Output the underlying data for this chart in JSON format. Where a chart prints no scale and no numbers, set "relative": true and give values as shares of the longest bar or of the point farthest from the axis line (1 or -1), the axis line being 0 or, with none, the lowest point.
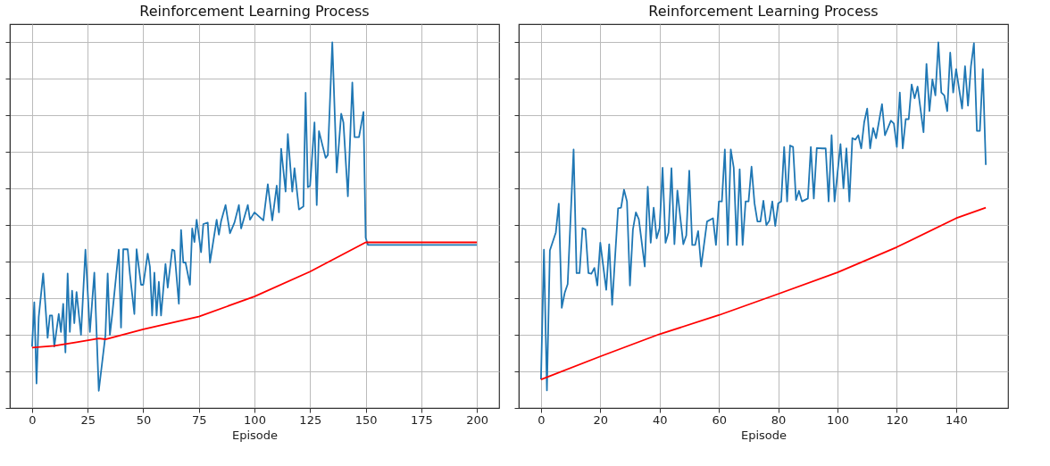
{
  "chart_data": [
    {
      "type": "line",
      "title": "Reinforcement Learning Process",
      "xlabel": "Episode",
      "relative": true,
      "xlim": [
        -10,
        210
      ],
      "xticks": [
        0,
        25,
        50,
        75,
        100,
        125,
        150,
        175,
        200
      ],
      "grid": true,
      "series": [
        {
          "color": "#1f77b4",
          "x": [
            0,
            1,
            2,
            3,
            5,
            7,
            8,
            9,
            10,
            12,
            13,
            14,
            15,
            16,
            17,
            18,
            19,
            20,
            22,
            24,
            26,
            28,
            30,
            33,
            34,
            35,
            36,
            39,
            40,
            41,
            43,
            44,
            46,
            47,
            49,
            50,
            52,
            53,
            54,
            55,
            56,
            57,
            58,
            60,
            61,
            63,
            64,
            66,
            67,
            68,
            69,
            71,
            72,
            73,
            74,
            76,
            77,
            79,
            80,
            83,
            84,
            85,
            87,
            89,
            91,
            93,
            94,
            97,
            98,
            100,
            104,
            106,
            108,
            110,
            111,
            112,
            114,
            115,
            117,
            118,
            120,
            122,
            123,
            124,
            125,
            127,
            128,
            129,
            132,
            133,
            135,
            137,
            139,
            140,
            142,
            144,
            145,
            147,
            149,
            150,
            151,
            200
          ],
          "values": [
            0.168,
            0.289,
            0.067,
            0.249,
            0.368,
            0.192,
            0.253,
            0.253,
            0.168,
            0.257,
            0.208,
            0.285,
            0.152,
            0.368,
            0.208,
            0.321,
            0.232,
            0.317,
            0.2,
            0.433,
            0.208,
            0.37,
            0.047,
            0.2,
            0.368,
            0.2,
            0.253,
            0.433,
            0.22,
            0.434,
            0.434,
            0.366,
            0.257,
            0.434,
            0.337,
            0.337,
            0.422,
            0.386,
            0.253,
            0.37,
            0.253,
            0.345,
            0.253,
            0.394,
            0.329,
            0.433,
            0.43,
            0.285,
            0.487,
            0.398,
            0.398,
            0.337,
            0.491,
            0.454,
            0.515,
            0.426,
            0.503,
            0.507,
            0.398,
            0.515,
            0.474,
            0.511,
            0.555,
            0.478,
            0.507,
            0.555,
            0.491,
            0.555,
            0.515,
            0.535,
            0.513,
            0.612,
            0.513,
            0.608,
            0.535,
            0.709,
            0.592,
            0.749,
            0.592,
            0.656,
            0.543,
            0.551,
            0.862,
            0.604,
            0.608,
            0.781,
            0.555,
            0.757,
            0.684,
            0.692,
            1.0,
            0.644,
            0.805,
            0.781,
            0.579,
            0.89,
            0.741,
            0.741,
            0.81,
            0.466,
            0.446,
            0.446
          ]
        },
        {
          "color": "#ff0000",
          "x": [
            0,
            10,
            20,
            30,
            33,
            50,
            75,
            100,
            125,
            150,
            200
          ],
          "values": [
            0.165,
            0.17,
            0.18,
            0.19,
            0.188,
            0.215,
            0.25,
            0.305,
            0.373,
            0.453,
            0.453
          ]
        }
      ]
    },
    {
      "type": "line",
      "title": "Reinforcement Learning Process",
      "xlabel": "Episode",
      "relative": true,
      "xlim": [
        -7.5,
        157.5
      ],
      "xticks": [
        0,
        20,
        40,
        60,
        80,
        100,
        120,
        140
      ],
      "grid": true,
      "series": [
        {
          "color": "#1f77b4",
          "x": [
            0,
            1,
            2,
            3,
            5,
            6,
            7,
            8,
            9,
            11,
            12,
            13,
            14,
            15,
            16,
            17,
            18,
            19,
            20,
            22,
            23,
            24,
            26,
            27,
            28,
            29,
            30,
            31,
            32,
            33,
            35,
            36,
            37,
            38,
            39,
            40,
            41,
            42,
            43,
            44,
            45,
            46,
            47,
            48,
            49,
            50,
            51,
            52,
            53,
            54,
            56,
            58,
            59,
            60,
            61,
            62,
            63,
            64,
            65,
            66,
            67,
            68,
            69,
            70,
            71,
            72,
            73,
            74,
            75,
            76,
            77,
            78,
            79,
            80,
            81,
            82,
            83,
            84,
            85,
            86,
            87,
            88,
            90,
            91,
            92,
            93,
            95,
            96,
            97,
            98,
            99,
            101,
            102,
            103,
            104,
            105,
            106,
            107,
            108,
            109,
            110,
            111,
            112,
            113,
            115,
            116,
            118,
            119,
            120,
            121,
            122,
            123,
            124,
            125,
            126,
            127,
            129,
            130,
            131,
            132,
            133,
            134,
            135,
            136,
            137,
            138,
            139,
            140,
            142,
            143,
            144,
            145,
            146,
            147,
            148,
            149,
            150
          ],
          "values": [
            0.078,
            0.433,
            0.048,
            0.431,
            0.48,
            0.559,
            0.274,
            0.315,
            0.339,
            0.707,
            0.369,
            0.369,
            0.492,
            0.488,
            0.369,
            0.367,
            0.383,
            0.335,
            0.452,
            0.323,
            0.448,
            0.282,
            0.546,
            0.548,
            0.597,
            0.565,
            0.335,
            0.488,
            0.535,
            0.516,
            0.387,
            0.605,
            0.452,
            0.548,
            0.464,
            0.492,
            0.657,
            0.452,
            0.48,
            0.656,
            0.448,
            0.595,
            0.52,
            0.448,
            0.472,
            0.649,
            0.446,
            0.446,
            0.484,
            0.387,
            0.51,
            0.519,
            0.446,
            0.565,
            0.565,
            0.707,
            0.446,
            0.707,
            0.657,
            0.446,
            0.653,
            0.446,
            0.565,
            0.565,
            0.66,
            0.56,
            0.51,
            0.51,
            0.567,
            0.5,
            0.512,
            0.565,
            0.498,
            0.56,
            0.565,
            0.714,
            0.565,
            0.718,
            0.714,
            0.569,
            0.594,
            0.565,
            0.573,
            0.714,
            0.573,
            0.711,
            0.71,
            0.71,
            0.565,
            0.746,
            0.565,
            0.722,
            0.601,
            0.71,
            0.565,
            0.738,
            0.734,
            0.746,
            0.71,
            0.782,
            0.819,
            0.71,
            0.766,
            0.738,
            0.831,
            0.746,
            0.786,
            0.778,
            0.714,
            0.863,
            0.71,
            0.79,
            0.79,
            0.885,
            0.847,
            0.879,
            0.754,
            0.941,
            0.812,
            0.899,
            0.855,
            1.0,
            0.863,
            0.855,
            0.812,
            0.972,
            0.863,
            0.927,
            0.819,
            0.935,
            0.827,
            0.935,
            0.998,
            0.758,
            0.758,
            0.927,
            0.665
          ]
        },
        {
          "color": "#ff0000",
          "x": [
            0,
            20,
            40,
            60,
            80,
            100,
            120,
            140,
            150
          ],
          "values": [
            0.078,
            0.141,
            0.202,
            0.254,
            0.312,
            0.371,
            0.44,
            0.519,
            0.548
          ]
        }
      ]
    }
  ]
}
